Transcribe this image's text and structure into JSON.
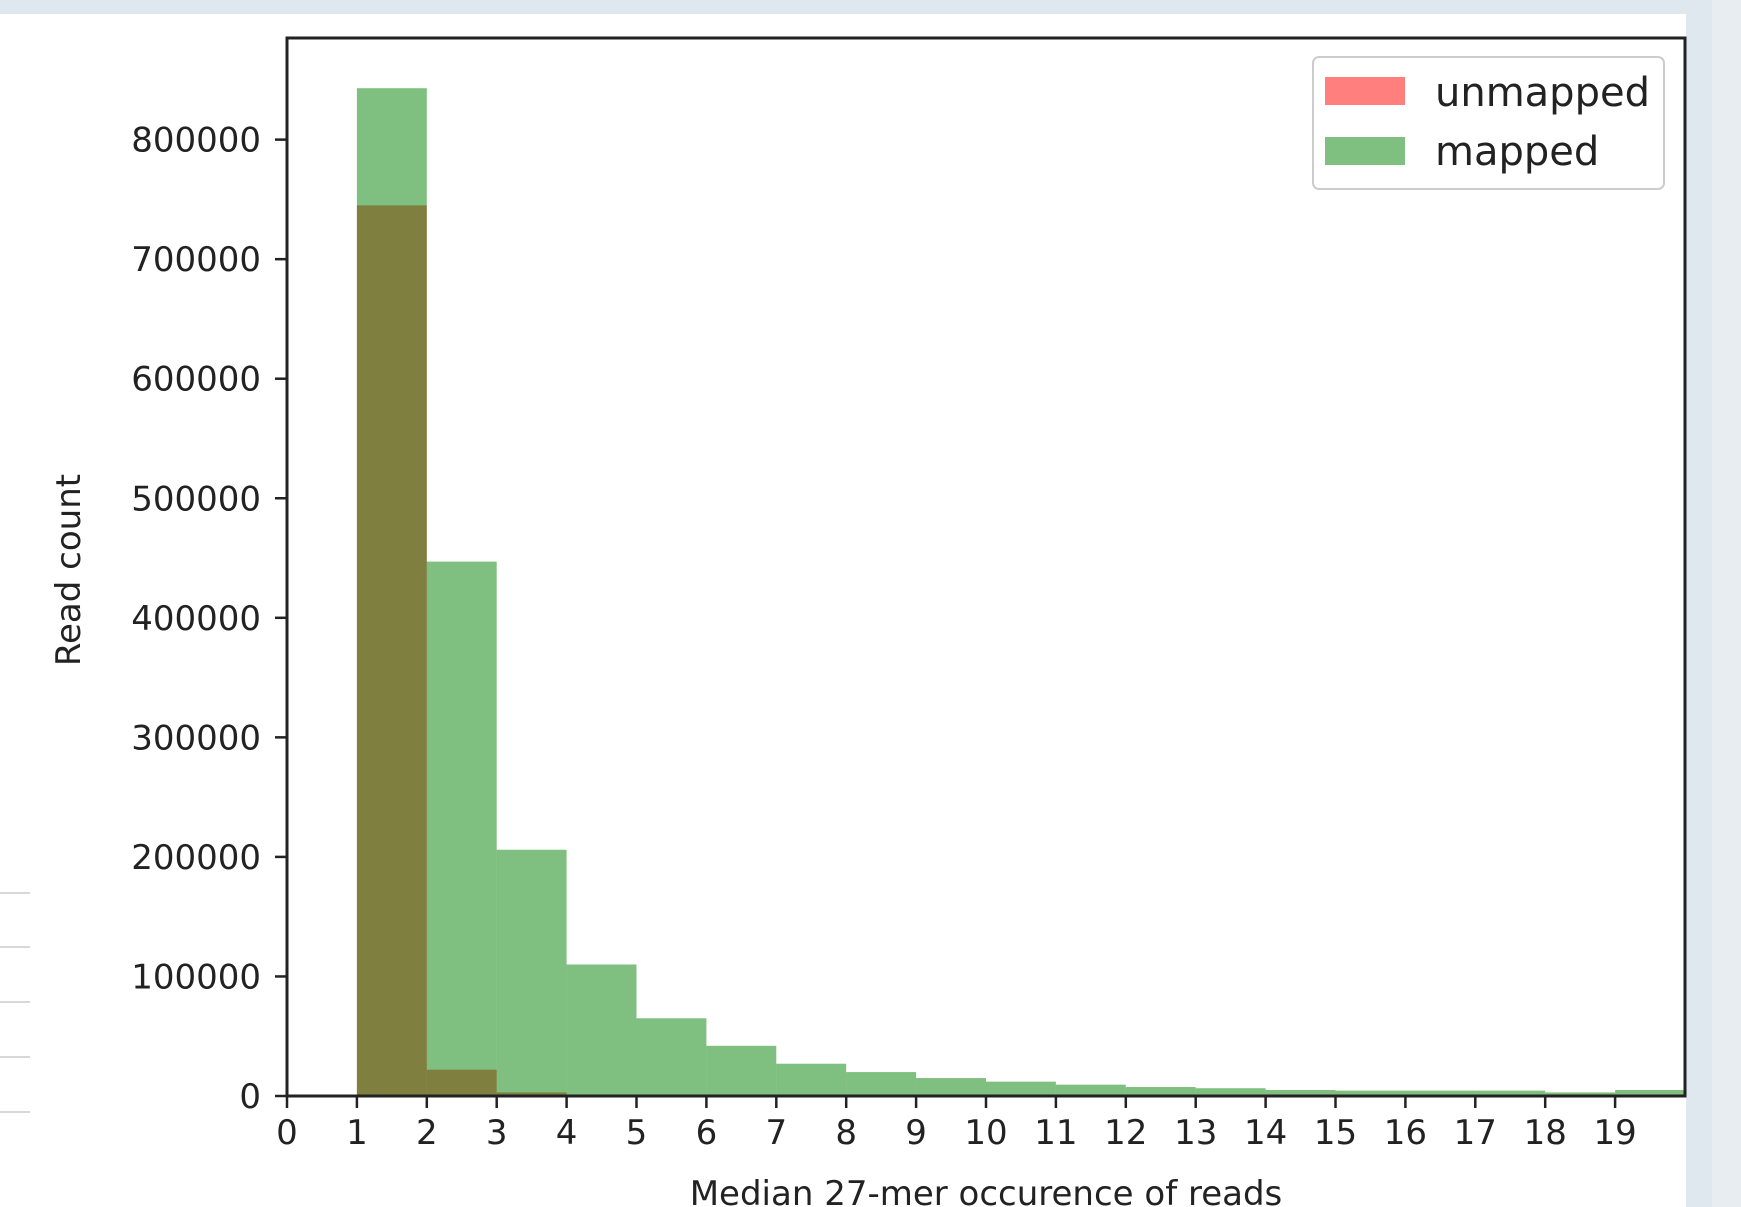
{
  "chart_data": {
    "type": "bar",
    "xlabel": "Median 27-mer occurence of reads",
    "ylabel": "Read count",
    "xlim": [
      0,
      20
    ],
    "ylim": [
      0,
      885000
    ],
    "x_ticks": [
      "0",
      "1",
      "2",
      "3",
      "4",
      "5",
      "6",
      "7",
      "8",
      "9",
      "10",
      "11",
      "12",
      "13",
      "14",
      "15",
      "16",
      "17",
      "18",
      "19"
    ],
    "y_ticks": [
      "0",
      "100000",
      "200000",
      "300000",
      "400000",
      "500000",
      "600000",
      "700000",
      "800000"
    ],
    "bin_edges": [
      1,
      2,
      3,
      4,
      5,
      6,
      7,
      8,
      9,
      10,
      11,
      12,
      13,
      14,
      15,
      16,
      17,
      18,
      19,
      20
    ],
    "series": [
      {
        "name": "unmapped",
        "color": "#ff0000",
        "values": [
          745000,
          22000,
          3000,
          1000,
          500,
          300,
          200,
          150,
          100,
          80,
          60,
          50,
          40,
          30,
          25,
          20,
          15,
          10,
          8
        ]
      },
      {
        "name": "mapped",
        "color": "#008000",
        "values": [
          843000,
          447000,
          206000,
          110000,
          65000,
          42000,
          27000,
          20000,
          15000,
          12000,
          9500,
          7500,
          6500,
          5000,
          4500,
          4500,
          4500,
          3000,
          5000
        ]
      }
    ],
    "legend_position": "top-right",
    "grid": false
  }
}
